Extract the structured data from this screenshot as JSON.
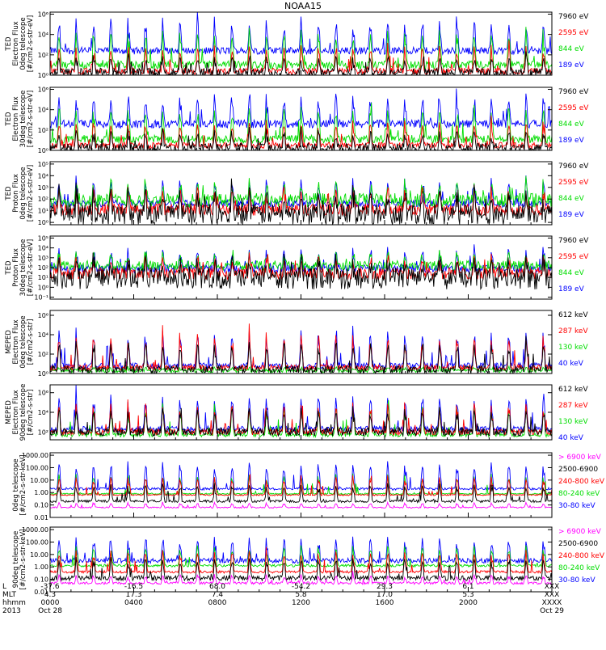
{
  "title": "NOAA15",
  "panels": [
    {
      "ylabel": [
        "TED",
        "Electron Flux",
        "0deg telescope",
        "[#/cm2-s-str-eV]"
      ],
      "ticks": [
        {
          "label": "10⁶",
          "y": 6
        },
        {
          "label": "10⁴",
          "y": 4
        },
        {
          "label": "10²",
          "y": 2
        },
        {
          "label": "10⁰",
          "y": 0
        }
      ],
      "ymin": 0,
      "ymax": 6.2,
      "legend": [
        {
          "label": "7960 eV",
          "color": "#000000"
        },
        {
          "label": "2595 eV",
          "color": "#ff0000"
        },
        {
          "label": "844 eV",
          "color": "#00dd00"
        },
        {
          "label": "189 eV",
          "color": "#0000ff"
        }
      ],
      "series": [
        {
          "color": "#0000ff",
          "base": 2.4,
          "noise": 0.35,
          "spike": 5.6
        },
        {
          "color": "#00dd00",
          "base": 1.0,
          "noise": 0.4,
          "spike": 4.6
        },
        {
          "color": "#ff0000",
          "base": 0.4,
          "noise": 0.3,
          "spike": 3.0
        },
        {
          "color": "#000000",
          "base": 0.2,
          "noise": 0.5,
          "spike": 2.0
        }
      ]
    },
    {
      "ylabel": [
        "TED",
        "Electron Flux",
        "30deg telescope",
        "[#/cm2-s-str-eV]"
      ],
      "ticks": [
        {
          "label": "10⁶",
          "y": 6
        },
        {
          "label": "10⁴",
          "y": 4
        },
        {
          "label": "10²",
          "y": 2
        },
        {
          "label": "10⁰",
          "y": 0
        }
      ],
      "ymin": 0,
      "ymax": 6.2,
      "legend": [
        {
          "label": "7960 eV",
          "color": "#000000"
        },
        {
          "label": "2595 eV",
          "color": "#ff0000"
        },
        {
          "label": "844 eV",
          "color": "#00dd00"
        },
        {
          "label": "189 eV",
          "color": "#0000ff"
        }
      ],
      "series": [
        {
          "color": "#0000ff",
          "base": 2.6,
          "noise": 0.4,
          "spike": 5.5
        },
        {
          "color": "#00dd00",
          "base": 1.1,
          "noise": 0.4,
          "spike": 4.4
        },
        {
          "color": "#ff0000",
          "base": 0.5,
          "noise": 0.3,
          "spike": 3.0
        },
        {
          "color": "#000000",
          "base": 0.2,
          "noise": 0.5,
          "spike": 2.0
        }
      ]
    },
    {
      "ylabel": [
        "TED",
        "Proton Flux",
        "0deg telescope",
        "[#/cm2-s-str-eV]"
      ],
      "ticks": [
        {
          "label": "10⁵",
          "y": 5
        },
        {
          "label": "10⁴",
          "y": 4
        },
        {
          "label": "10³",
          "y": 3
        },
        {
          "label": "10²",
          "y": 2
        },
        {
          "label": "10¹",
          "y": 1
        },
        {
          "label": "10⁰",
          "y": 0
        }
      ],
      "ymin": -0.2,
      "ymax": 5.2,
      "legend": [
        {
          "label": "7960 eV",
          "color": "#000000"
        },
        {
          "label": "2595 eV",
          "color": "#ff0000"
        },
        {
          "label": "844 eV",
          "color": "#00dd00"
        },
        {
          "label": "189 eV",
          "color": "#0000ff"
        }
      ],
      "series": [
        {
          "color": "#0000ff",
          "base": 1.6,
          "noise": 0.3,
          "spike": 3.8
        },
        {
          "color": "#00dd00",
          "base": 1.9,
          "noise": 0.6,
          "spike": 3.4
        },
        {
          "color": "#ff0000",
          "base": 1.1,
          "noise": 0.5,
          "spike": 3.0
        },
        {
          "color": "#000000",
          "base": 0.7,
          "noise": 0.9,
          "spike": 2.8
        }
      ]
    },
    {
      "ylabel": [
        "TED",
        "Proton Flux",
        "30deg telescope",
        "[#/cm2-s-str-eV]"
      ],
      "ticks": [
        {
          "label": "10⁵",
          "y": 5
        },
        {
          "label": "10⁴",
          "y": 4
        },
        {
          "label": "10³",
          "y": 3
        },
        {
          "label": "10²",
          "y": 2
        },
        {
          "label": "10¹",
          "y": 1
        },
        {
          "label": "10⁰",
          "y": 0
        },
        {
          "label": "10⁻¹",
          "y": -1
        }
      ],
      "ymin": -1.2,
      "ymax": 5.2,
      "legend": [
        {
          "label": "7960 eV",
          "color": "#000000"
        },
        {
          "label": "2595 eV",
          "color": "#ff0000"
        },
        {
          "label": "844 eV",
          "color": "#00dd00"
        },
        {
          "label": "189 eV",
          "color": "#0000ff"
        }
      ],
      "series": [
        {
          "color": "#0000ff",
          "base": 1.9,
          "noise": 0.4,
          "spike": 4.0
        },
        {
          "color": "#00dd00",
          "base": 2.2,
          "noise": 0.5,
          "spike": 3.6
        },
        {
          "color": "#ff0000",
          "base": 1.4,
          "noise": 0.6,
          "spike": 3.2
        },
        {
          "color": "#000000",
          "base": 0.9,
          "noise": 1.1,
          "spike": 3.0
        }
      ]
    },
    {
      "ylabel": [
        "MEPED",
        "Electron Flux",
        "0deg telescope",
        "[#/cm2-s-str]"
      ],
      "ticks": [
        {
          "label": "10⁶",
          "y": 6
        },
        {
          "label": "10⁴",
          "y": 4
        },
        {
          "label": "10²",
          "y": 2
        },
        {
          "label": "10⁰",
          "y": 0
        }
      ],
      "ymin": 0,
      "ymax": 6.5,
      "legend": [
        {
          "label": "612 keV",
          "color": "#000000"
        },
        {
          "label": "287 keV",
          "color": "#ff0000"
        },
        {
          "label": "130 keV",
          "color": "#00dd00"
        },
        {
          "label": "40 keV",
          "color": "#0000ff"
        }
      ],
      "series": [
        {
          "color": "#0000ff",
          "base": 0.8,
          "noise": 0.3,
          "spike": 4.6
        },
        {
          "color": "#00dd00",
          "base": 0.3,
          "noise": 0.2,
          "spike": 0.6
        },
        {
          "color": "#ff0000",
          "base": 0.6,
          "noise": 0.3,
          "spike": 4.2
        },
        {
          "color": "#000000",
          "base": 0.4,
          "noise": 0.4,
          "spike": 3.6
        }
      ]
    },
    {
      "ylabel": [
        "MEPED",
        "Electron Flux",
        "90deg telescope",
        "[#/cm2-s-str]"
      ],
      "ticks": [
        {
          "label": "10⁶",
          "y": 6
        },
        {
          "label": "10⁴",
          "y": 4
        },
        {
          "label": "10²",
          "y": 2
        }
      ],
      "ymin": 1.2,
      "ymax": 6.8,
      "legend": [
        {
          "label": "612 keV",
          "color": "#000000"
        },
        {
          "label": "287 keV",
          "color": "#ff0000"
        },
        {
          "label": "130 keV",
          "color": "#00dd00"
        },
        {
          "label": "40 keV",
          "color": "#0000ff"
        }
      ],
      "series": [
        {
          "color": "#0000ff",
          "base": 2.3,
          "noise": 0.3,
          "spike": 6.0
        },
        {
          "color": "#00dd00",
          "base": 1.7,
          "noise": 0.2,
          "spike": 5.0
        },
        {
          "color": "#ff0000",
          "base": 2.0,
          "noise": 0.3,
          "spike": 5.2
        },
        {
          "color": "#000000",
          "base": 2.0,
          "noise": 0.4,
          "spike": 4.6
        }
      ]
    },
    {
      "ylabel": [
        "0deg telescope",
        "[#/cm2-s-str-keV]"
      ],
      "ticks": [
        {
          "label": "1000.00",
          "y": 3
        },
        {
          "label": "100.00",
          "y": 2
        },
        {
          "label": "10.00",
          "y": 1
        },
        {
          "label": "1.00",
          "y": 0
        },
        {
          "label": "0.10",
          "y": -1
        },
        {
          "label": "0.01",
          "y": -2
        }
      ],
      "ymin": -2,
      "ymax": 3.2,
      "legend": [
        {
          "label": "> 6900 keV",
          "color": "#ff00ff"
        },
        {
          "label": "2500-6900",
          "color": "#000000"
        },
        {
          "label": "240-800 keV",
          "color": "#ff0000"
        },
        {
          "label": "80-240 keV",
          "color": "#00dd00"
        },
        {
          "label": "30-80 keV",
          "color": "#0000ff"
        }
      ],
      "series": [
        {
          "color": "#0000ff",
          "base": 0.3,
          "noise": 0.1,
          "spike": 2.6
        },
        {
          "color": "#00dd00",
          "base": -0.1,
          "noise": 0.05,
          "spike": 1.6
        },
        {
          "color": "#ff0000",
          "base": -0.2,
          "noise": 0.05,
          "spike": 1.4
        },
        {
          "color": "#000000",
          "base": -0.7,
          "noise": 0.1,
          "spike": 0.8
        },
        {
          "color": "#ff00ff",
          "base": -1.2,
          "noise": 0.05,
          "spike": -0.8
        }
      ]
    },
    {
      "ylabel": [
        "90deg telescope",
        "[#/cm2-s-str-keV]"
      ],
      "ticks": [
        {
          "label": "1000.00",
          "y": 3
        },
        {
          "label": "100.00",
          "y": 2
        },
        {
          "label": "10.00",
          "y": 1
        },
        {
          "label": "1.00",
          "y": 0
        },
        {
          "label": "0.10",
          "y": -1
        },
        {
          "label": "0.01",
          "y": -2
        }
      ],
      "ymin": -2,
      "ymax": 3.2,
      "legend": [
        {
          "label": "> 6900 keV",
          "color": "#ff00ff"
        },
        {
          "label": "2500-6900",
          "color": "#000000"
        },
        {
          "label": "240-800 keV",
          "color": "#ff0000"
        },
        {
          "label": "80-240 keV",
          "color": "#00dd00"
        },
        {
          "label": "30-80 keV",
          "color": "#0000ff"
        }
      ],
      "series": [
        {
          "color": "#0000ff",
          "base": 0.5,
          "noise": 0.2,
          "spike": 2.4
        },
        {
          "color": "#00dd00",
          "base": 0.1,
          "noise": 0.1,
          "spike": 1.8
        },
        {
          "color": "#ff0000",
          "base": -0.4,
          "noise": 0.1,
          "spike": 1.4
        },
        {
          "color": "#000000",
          "base": -0.9,
          "noise": 0.2,
          "spike": 0.8
        },
        {
          "color": "#ff00ff",
          "base": -1.3,
          "noise": 0.1,
          "spike": -0.6
        }
      ]
    }
  ],
  "xaxis": {
    "row_labels": [
      "L",
      "MLT",
      "hhmm",
      "2013"
    ],
    "columns": [
      {
        "l": "-37.6",
        "mlt": "4.3",
        "hhmm": "0000",
        "date": "Oct 28"
      },
      {
        "l": "-16.5",
        "mlt": "17.3",
        "hhmm": "0400",
        "date": ""
      },
      {
        "l": "68.0",
        "mlt": "7.4",
        "hhmm": "0800",
        "date": ""
      },
      {
        "l": "-54.2",
        "mlt": "5.8",
        "hhmm": "1200",
        "date": ""
      },
      {
        "l": "29.3",
        "mlt": "17.0",
        "hhmm": "1600",
        "date": ""
      },
      {
        "l": "6.1",
        "mlt": "5.3",
        "hhmm": "2000",
        "date": ""
      },
      {
        "l": "XXX",
        "mlt": "XXX",
        "hhmm": "XXXX",
        "date": "Oct 29"
      }
    ]
  },
  "chart_data": {
    "type": "line",
    "title": "NOAA15",
    "x_range_hours": [
      0,
      24
    ],
    "x_ticks_hhmm": [
      "0000",
      "0400",
      "0800",
      "1200",
      "1600",
      "2000",
      "XXXX"
    ],
    "orbit_passes": 29,
    "panels": 8
  }
}
